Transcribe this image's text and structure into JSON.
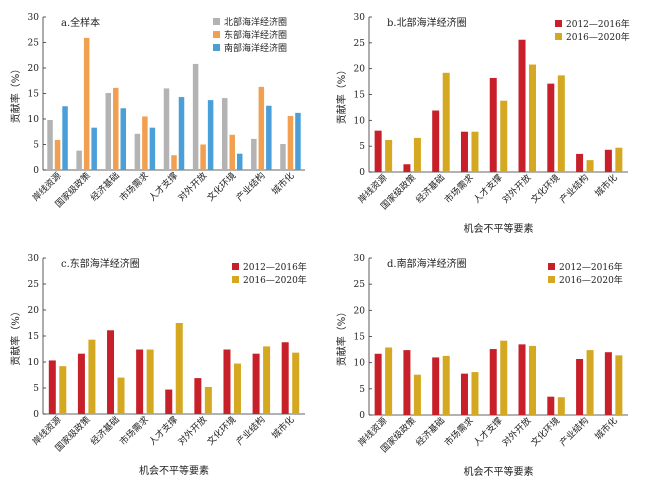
{
  "chart_data": [
    {
      "type": "bar",
      "title": "a.全样本",
      "xlabel": "",
      "ylabel": "贡献率（%）",
      "ylim": [
        0,
        30
      ],
      "yticks": [
        0,
        5,
        10,
        15,
        20,
        25,
        30
      ],
      "legend": "top-right",
      "categories": [
        "岸线资源",
        "国家级政策",
        "经济基础",
        "市场需求",
        "人才支撑",
        "对外开放",
        "文化环境",
        "产业结构",
        "城市化"
      ],
      "series": [
        {
          "name": "北部海洋经济圈",
          "color": "#b3b3b3",
          "values": [
            9.8,
            3.8,
            15.1,
            7.1,
            16.0,
            20.8,
            14.1,
            6.1,
            5.1
          ]
        },
        {
          "name": "东部海洋经济圈",
          "color": "#f0a050",
          "values": [
            5.9,
            25.9,
            16.1,
            10.5,
            2.9,
            5.0,
            6.9,
            16.3,
            10.6
          ]
        },
        {
          "name": "南部海洋经济圈",
          "color": "#4a9fd8",
          "values": [
            12.5,
            8.3,
            12.1,
            8.3,
            14.3,
            13.7,
            3.2,
            12.6,
            11.2
          ]
        }
      ]
    },
    {
      "type": "bar",
      "title": "b.北部海洋经济圈",
      "xlabel": "机会不平等要素",
      "ylabel": "贡献率（%）",
      "ylim": [
        0,
        30
      ],
      "yticks": [
        0,
        5,
        10,
        15,
        20,
        25,
        30
      ],
      "legend": "top-right",
      "categories": [
        "岸线资源",
        "国家级政策",
        "经济基础",
        "市场需求",
        "人才支撑",
        "对外开放",
        "文化环境",
        "产业结构",
        "城市化"
      ],
      "series": [
        {
          "name": "2012—2016年",
          "color": "#c8202a",
          "values": [
            8.0,
            1.5,
            11.9,
            7.8,
            18.2,
            25.6,
            17.1,
            3.5,
            4.3
          ]
        },
        {
          "name": "2016—2020年",
          "color": "#d4a820",
          "values": [
            6.2,
            6.6,
            19.2,
            7.8,
            13.8,
            20.8,
            18.7,
            2.3,
            4.7
          ]
        }
      ]
    },
    {
      "type": "bar",
      "title": "c.东部海洋经济圈",
      "xlabel": "机会不平等要素",
      "ylabel": "贡献率（%）",
      "ylim": [
        0,
        30
      ],
      "yticks": [
        0,
        5,
        10,
        15,
        20,
        25,
        30
      ],
      "legend": "top-right",
      "categories": [
        "岸线资源",
        "国家级政策",
        "经济基础",
        "市场需求",
        "人才支撑",
        "对外开放",
        "文化环境",
        "产业结构",
        "城市化"
      ],
      "series": [
        {
          "name": "2012—2016年",
          "color": "#c8202a",
          "values": [
            10.3,
            11.6,
            16.1,
            12.4,
            4.7,
            6.9,
            12.4,
            11.6,
            13.8
          ]
        },
        {
          "name": "2016—2020年",
          "color": "#d4a820",
          "values": [
            9.2,
            14.3,
            7.0,
            12.4,
            17.5,
            5.2,
            9.7,
            13.0,
            11.8
          ]
        }
      ]
    },
    {
      "type": "bar",
      "title": "d.南部海洋经济圈",
      "xlabel": "机会不平等要素",
      "ylabel": "贡献率（%）",
      "ylim": [
        0,
        30
      ],
      "yticks": [
        0,
        5,
        10,
        15,
        20,
        25,
        30
      ],
      "legend": "top-right",
      "categories": [
        "岸线资源",
        "国家级政策",
        "经济基础",
        "市场需求",
        "人才支撑",
        "对外开放",
        "文化环境",
        "产业结构",
        "城市化"
      ],
      "series": [
        {
          "name": "2012—2016年",
          "color": "#c8202a",
          "values": [
            11.7,
            12.4,
            11.0,
            7.9,
            12.6,
            13.5,
            3.5,
            10.7,
            12.0
          ]
        },
        {
          "name": "2016—2020年",
          "color": "#d4a820",
          "values": [
            12.9,
            7.7,
            11.3,
            8.2,
            14.2,
            13.2,
            3.4,
            12.4,
            11.4
          ]
        }
      ]
    }
  ]
}
